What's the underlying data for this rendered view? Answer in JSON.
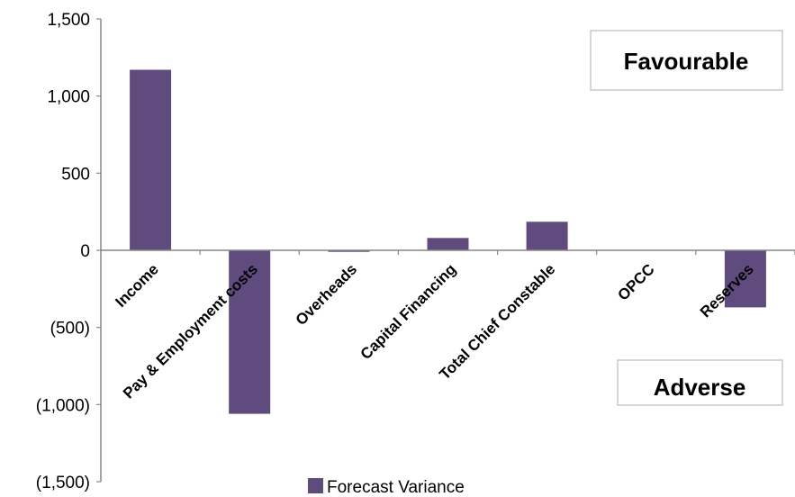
{
  "chart_data": {
    "type": "bar",
    "categories": [
      "Income",
      "Pay & Employment costs",
      "Overheads",
      "Capital Financing",
      "Total Chief Constable",
      "OPCC",
      "Reserves"
    ],
    "series": [
      {
        "name": "Forecast Variance",
        "values": [
          1170,
          -1060,
          -10,
          80,
          185,
          0,
          -370
        ]
      }
    ],
    "ylim": [
      -1500,
      1500
    ],
    "ytick_values": [
      1500,
      1000,
      500,
      0,
      -500,
      -1000,
      -1500
    ],
    "ytick_labels": [
      "1,500",
      "1,000",
      "500",
      "0",
      "(500)",
      "(1,000)",
      "(1,500)"
    ],
    "annotations": {
      "favourable": "Favourable",
      "adverse": "Adverse"
    },
    "legend": "bottom",
    "grid": false,
    "bar_color": "#5f4b7d"
  }
}
